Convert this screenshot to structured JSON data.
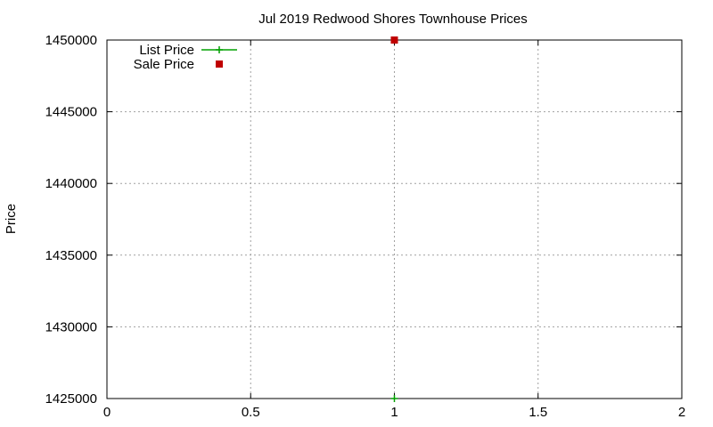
{
  "chart_data": {
    "type": "scatter",
    "title": "Jul 2019 Redwood Shores Townhouse Prices",
    "xlabel": "",
    "ylabel": "Price",
    "xlim": [
      0,
      2
    ],
    "ylim": [
      1425000,
      1450000
    ],
    "x_ticks": [
      0,
      0.5,
      1,
      1.5,
      2
    ],
    "x_tick_labels": [
      "0",
      "0.5",
      "1",
      "1.5",
      "2"
    ],
    "y_ticks": [
      1425000,
      1430000,
      1435000,
      1440000,
      1445000,
      1450000
    ],
    "y_tick_labels": [
      "1425000",
      "1430000",
      "1435000",
      "1440000",
      "1445000",
      "1450000"
    ],
    "grid": true,
    "legend_position": "top-left",
    "series": [
      {
        "name": "List Price",
        "marker": "plus",
        "color": "#00a000",
        "points": [
          {
            "x": 1,
            "y": 1425000
          }
        ]
      },
      {
        "name": "Sale Price",
        "marker": "square",
        "color": "#c00000",
        "points": [
          {
            "x": 1,
            "y": 1450000
          }
        ]
      }
    ]
  }
}
